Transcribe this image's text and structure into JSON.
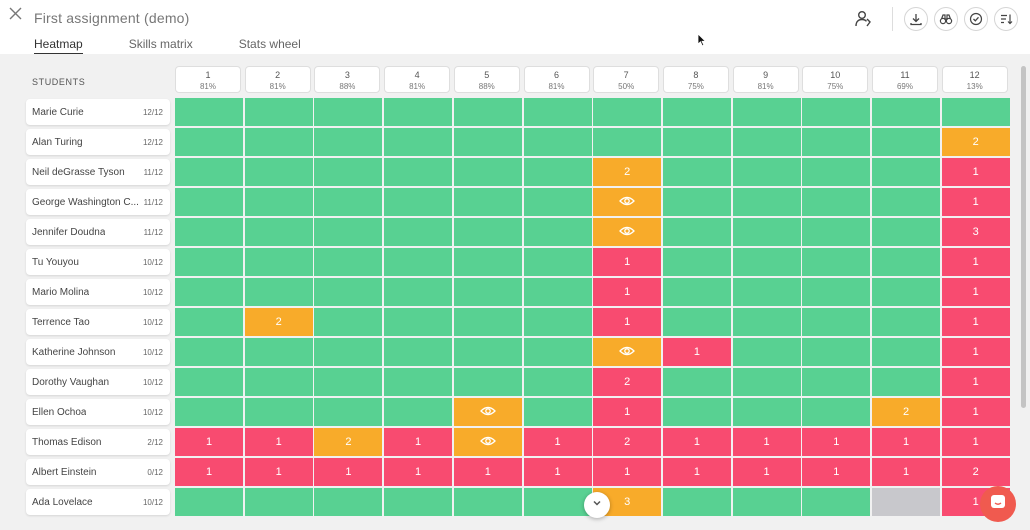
{
  "header": {
    "title": "First assignment (demo)",
    "close_icon": "close-icon",
    "tools": [
      "person-icon",
      "download-icon",
      "binoculars-icon",
      "check-circle-icon",
      "sort-icon"
    ]
  },
  "tabs": [
    {
      "label": "Heatmap",
      "active": true
    },
    {
      "label": "Skills matrix",
      "active": false
    },
    {
      "label": "Stats wheel",
      "active": false
    }
  ],
  "students_label": "STUDENTS",
  "columns": [
    {
      "num": "1",
      "pct": "81%"
    },
    {
      "num": "2",
      "pct": "81%"
    },
    {
      "num": "3",
      "pct": "88%"
    },
    {
      "num": "4",
      "pct": "81%"
    },
    {
      "num": "5",
      "pct": "88%"
    },
    {
      "num": "6",
      "pct": "81%"
    },
    {
      "num": "7",
      "pct": "50%"
    },
    {
      "num": "8",
      "pct": "75%"
    },
    {
      "num": "9",
      "pct": "81%"
    },
    {
      "num": "10",
      "pct": "75%"
    },
    {
      "num": "11",
      "pct": "69%"
    },
    {
      "num": "12",
      "pct": "13%"
    }
  ],
  "colors": {
    "green": "#58d192",
    "orange": "#f8ab2a",
    "red": "#f84b70",
    "gray": "#c8c8cc"
  },
  "rows": [
    {
      "name": "Marie Curie",
      "score": "12/12",
      "cells": [
        [
          "g",
          ""
        ],
        [
          "g",
          ""
        ],
        [
          "g",
          ""
        ],
        [
          "g",
          ""
        ],
        [
          "g",
          ""
        ],
        [
          "g",
          ""
        ],
        [
          "g",
          ""
        ],
        [
          "g",
          ""
        ],
        [
          "g",
          ""
        ],
        [
          "g",
          ""
        ],
        [
          "g",
          ""
        ],
        [
          "g",
          ""
        ]
      ]
    },
    {
      "name": "Alan Turing",
      "score": "12/12",
      "cells": [
        [
          "g",
          ""
        ],
        [
          "g",
          ""
        ],
        [
          "g",
          ""
        ],
        [
          "g",
          ""
        ],
        [
          "g",
          ""
        ],
        [
          "g",
          ""
        ],
        [
          "g",
          ""
        ],
        [
          "g",
          ""
        ],
        [
          "g",
          ""
        ],
        [
          "g",
          ""
        ],
        [
          "g",
          ""
        ],
        [
          "o",
          "2"
        ]
      ]
    },
    {
      "name": "Neil deGrasse Tyson",
      "score": "11/12",
      "cells": [
        [
          "g",
          ""
        ],
        [
          "g",
          ""
        ],
        [
          "g",
          ""
        ],
        [
          "g",
          ""
        ],
        [
          "g",
          ""
        ],
        [
          "g",
          ""
        ],
        [
          "o",
          "2"
        ],
        [
          "g",
          ""
        ],
        [
          "g",
          ""
        ],
        [
          "g",
          ""
        ],
        [
          "g",
          ""
        ],
        [
          "r",
          "1"
        ]
      ]
    },
    {
      "name": "George Washington C...",
      "score": "11/12",
      "cells": [
        [
          "g",
          ""
        ],
        [
          "g",
          ""
        ],
        [
          "g",
          ""
        ],
        [
          "g",
          ""
        ],
        [
          "g",
          ""
        ],
        [
          "g",
          ""
        ],
        [
          "o",
          "eye"
        ],
        [
          "g",
          ""
        ],
        [
          "g",
          ""
        ],
        [
          "g",
          ""
        ],
        [
          "g",
          ""
        ],
        [
          "r",
          "1"
        ]
      ]
    },
    {
      "name": "Jennifer Doudna",
      "score": "11/12",
      "cells": [
        [
          "g",
          ""
        ],
        [
          "g",
          ""
        ],
        [
          "g",
          ""
        ],
        [
          "g",
          ""
        ],
        [
          "g",
          ""
        ],
        [
          "g",
          ""
        ],
        [
          "o",
          "eye"
        ],
        [
          "g",
          ""
        ],
        [
          "g",
          ""
        ],
        [
          "g",
          ""
        ],
        [
          "g",
          ""
        ],
        [
          "r",
          "3"
        ]
      ]
    },
    {
      "name": "Tu Youyou",
      "score": "10/12",
      "cells": [
        [
          "g",
          ""
        ],
        [
          "g",
          ""
        ],
        [
          "g",
          ""
        ],
        [
          "g",
          ""
        ],
        [
          "g",
          ""
        ],
        [
          "g",
          ""
        ],
        [
          "r",
          "1"
        ],
        [
          "g",
          ""
        ],
        [
          "g",
          ""
        ],
        [
          "g",
          ""
        ],
        [
          "g",
          ""
        ],
        [
          "r",
          "1"
        ]
      ]
    },
    {
      "name": "Mario Molina",
      "score": "10/12",
      "cells": [
        [
          "g",
          ""
        ],
        [
          "g",
          ""
        ],
        [
          "g",
          ""
        ],
        [
          "g",
          ""
        ],
        [
          "g",
          ""
        ],
        [
          "g",
          ""
        ],
        [
          "r",
          "1"
        ],
        [
          "g",
          ""
        ],
        [
          "g",
          ""
        ],
        [
          "g",
          ""
        ],
        [
          "g",
          ""
        ],
        [
          "r",
          "1"
        ]
      ]
    },
    {
      "name": "Terrence Tao",
      "score": "10/12",
      "cells": [
        [
          "g",
          ""
        ],
        [
          "o",
          "2"
        ],
        [
          "g",
          ""
        ],
        [
          "g",
          ""
        ],
        [
          "g",
          ""
        ],
        [
          "g",
          ""
        ],
        [
          "r",
          "1"
        ],
        [
          "g",
          ""
        ],
        [
          "g",
          ""
        ],
        [
          "g",
          ""
        ],
        [
          "g",
          ""
        ],
        [
          "r",
          "1"
        ]
      ]
    },
    {
      "name": "Katherine Johnson",
      "score": "10/12",
      "cells": [
        [
          "g",
          ""
        ],
        [
          "g",
          ""
        ],
        [
          "g",
          ""
        ],
        [
          "g",
          ""
        ],
        [
          "g",
          ""
        ],
        [
          "g",
          ""
        ],
        [
          "o",
          "eye"
        ],
        [
          "r",
          "1"
        ],
        [
          "g",
          ""
        ],
        [
          "g",
          ""
        ],
        [
          "g",
          ""
        ],
        [
          "r",
          "1"
        ]
      ]
    },
    {
      "name": "Dorothy Vaughan",
      "score": "10/12",
      "cells": [
        [
          "g",
          ""
        ],
        [
          "g",
          ""
        ],
        [
          "g",
          ""
        ],
        [
          "g",
          ""
        ],
        [
          "g",
          ""
        ],
        [
          "g",
          ""
        ],
        [
          "r",
          "2"
        ],
        [
          "g",
          ""
        ],
        [
          "g",
          ""
        ],
        [
          "g",
          ""
        ],
        [
          "g",
          ""
        ],
        [
          "r",
          "1"
        ]
      ]
    },
    {
      "name": "Ellen Ochoa",
      "score": "10/12",
      "cells": [
        [
          "g",
          ""
        ],
        [
          "g",
          ""
        ],
        [
          "g",
          ""
        ],
        [
          "g",
          ""
        ],
        [
          "o",
          "eye"
        ],
        [
          "g",
          ""
        ],
        [
          "r",
          "1"
        ],
        [
          "g",
          ""
        ],
        [
          "g",
          ""
        ],
        [
          "g",
          ""
        ],
        [
          "o",
          "2"
        ],
        [
          "r",
          "1"
        ]
      ]
    },
    {
      "name": "Thomas Edison",
      "score": "2/12",
      "cells": [
        [
          "r",
          "1"
        ],
        [
          "r",
          "1"
        ],
        [
          "o",
          "2"
        ],
        [
          "r",
          "1"
        ],
        [
          "o",
          "eye"
        ],
        [
          "r",
          "1"
        ],
        [
          "r",
          "2"
        ],
        [
          "r",
          "1"
        ],
        [
          "r",
          "1"
        ],
        [
          "r",
          "1"
        ],
        [
          "r",
          "1"
        ],
        [
          "r",
          "1"
        ]
      ]
    },
    {
      "name": "Albert Einstein",
      "score": "0/12",
      "cells": [
        [
          "r",
          "1"
        ],
        [
          "r",
          "1"
        ],
        [
          "r",
          "1"
        ],
        [
          "r",
          "1"
        ],
        [
          "r",
          "1"
        ],
        [
          "r",
          "1"
        ],
        [
          "r",
          "1"
        ],
        [
          "r",
          "1"
        ],
        [
          "r",
          "1"
        ],
        [
          "r",
          "1"
        ],
        [
          "r",
          "1"
        ],
        [
          "r",
          "2"
        ]
      ]
    },
    {
      "name": "Ada Lovelace",
      "score": "10/12",
      "cells": [
        [
          "g",
          ""
        ],
        [
          "g",
          ""
        ],
        [
          "g",
          ""
        ],
        [
          "g",
          ""
        ],
        [
          "g",
          ""
        ],
        [
          "g",
          ""
        ],
        [
          "o",
          "3"
        ],
        [
          "g",
          ""
        ],
        [
          "g",
          ""
        ],
        [
          "g",
          ""
        ],
        [
          "x",
          ""
        ],
        [
          "r",
          "1"
        ]
      ]
    }
  ],
  "scroll_down_icon": "chevron-down-icon",
  "chat_icon": "chat-icon"
}
